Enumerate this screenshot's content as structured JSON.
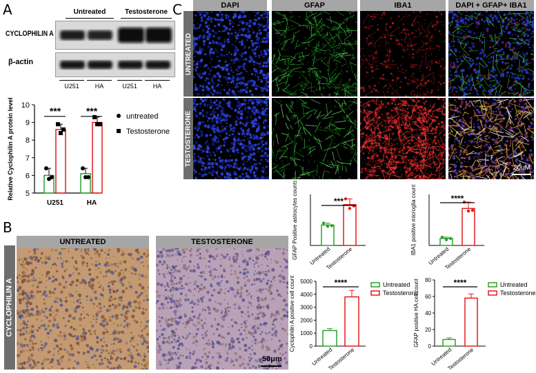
{
  "panels": {
    "A": "A",
    "B": "B",
    "C": "C"
  },
  "western": {
    "group_untreated": "Untreated",
    "group_testosterone": "Testosterone",
    "rows": [
      "CYCLOPHILIN A",
      "β-actin"
    ],
    "lanes": [
      "U251",
      "HA",
      "U251",
      "HA"
    ]
  },
  "ihc": {
    "headers": [
      "UNTREATED",
      "TESTOSTERONE"
    ],
    "side_label": "CYCLOPHILIN A",
    "scale": "50μm",
    "colors": {
      "background": "#b89470",
      "brown": "#8a5a3a",
      "blue": "#4a4f8a"
    }
  },
  "ifm": {
    "columns": [
      "DAPI",
      "GFAP",
      "IBA1",
      "DAPI + GFAP+ IBA1"
    ],
    "rows": [
      "UNTREATED",
      "TESTOSTERONE"
    ],
    "scale": "20uM"
  },
  "chart_data": [
    {
      "type": "bar",
      "panel": "A",
      "categories": [
        "U251",
        "HA"
      ],
      "series": [
        {
          "name": "untreated",
          "values": [
            6.0,
            6.1
          ],
          "points": [
            [
              6.4,
              5.8,
              5.9
            ],
            [
              6.4,
              5.9,
              5.9
            ]
          ],
          "color": "#2ca02c"
        },
        {
          "name": "Testosterone",
          "values": [
            8.6,
            9.0
          ],
          "points": [
            [
              8.9,
              8.4,
              8.6
            ],
            [
              9.3,
              8.9,
              8.9
            ]
          ],
          "color": "#e31a1c"
        }
      ],
      "ylabel": "Relative Cyclophilin A protein level",
      "ylim": [
        5,
        10
      ],
      "yticks": [
        "5",
        "6",
        "7",
        "8",
        "9",
        "10"
      ],
      "significance": [
        "***",
        "***"
      ]
    },
    {
      "type": "bar",
      "panel": "C-1",
      "categories": [
        "Untreated",
        "Testosterone"
      ],
      "values": [
        32,
        64
      ],
      "points": [
        [
          35,
          30,
          31
        ],
        [
          73,
          58,
          62
        ]
      ],
      "ylabel": "GFAP Positive astrocytes counts",
      "ylim": [
        0,
        80
      ],
      "significance": "***"
    },
    {
      "type": "bar",
      "panel": "C-2",
      "categories": [
        "Untreated",
        "Testosterone"
      ],
      "values": [
        11,
        58
      ],
      "points": [
        [
          13,
          9,
          11
        ],
        [
          68,
          54,
          55
        ]
      ],
      "ylabel": "IBA1 positive microglia count",
      "ylim": [
        0,
        80
      ],
      "significance": "****"
    },
    {
      "type": "bar",
      "panel": "C-3",
      "categories": [
        "Untreated",
        "Testosterone"
      ],
      "values": [
        1200,
        3800
      ],
      "errors": [
        150,
        500
      ],
      "ylabel": "Cyclophilin A positive cell count",
      "ylim": [
        0,
        5000
      ],
      "yticks": [
        "0",
        "1000",
        "2000",
        "3000",
        "4000",
        "5000"
      ],
      "significance": "****",
      "legend": [
        "Untreated",
        "Testosterone"
      ]
    },
    {
      "type": "bar",
      "panel": "C-4",
      "categories": [
        "Untreated",
        "Testosterone"
      ],
      "values": [
        8,
        58
      ],
      "errors": [
        2,
        5
      ],
      "ylabel": "GFAP positive HA cell count",
      "ylim": [
        0,
        80
      ],
      "yticks": [
        "0",
        "20",
        "40",
        "60",
        "80"
      ],
      "significance": "****",
      "legend": [
        "Untreated",
        "Testosterone"
      ]
    }
  ]
}
